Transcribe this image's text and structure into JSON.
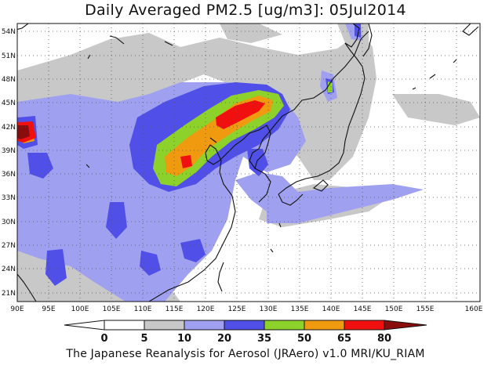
{
  "title": "Daily Averaged PM2.5 [ug/m3]: 05Jul2014",
  "footer": "The Japanese Reanalysis for Aerosol (JRAero) v1.0 MRI/KU_RIAM",
  "lat_labels": [
    "54N",
    "51N",
    "48N",
    "45N",
    "42N",
    "39N",
    "36N",
    "33N",
    "30N",
    "27N",
    "24N",
    "21N"
  ],
  "lon_labels": [
    "90E",
    "95E",
    "100E",
    "105E",
    "110E",
    "115E",
    "120E",
    "125E",
    "130E",
    "135E",
    "140E",
    "145E",
    "150E",
    "155E",
    "160E"
  ],
  "colorbar": {
    "labels": [
      "0",
      "5",
      "10",
      "20",
      "35",
      "50",
      "65",
      "80"
    ],
    "colors": [
      "#ffffff",
      "#c8c8c8",
      "#a0a0f0",
      "#5050e8",
      "#8cd22a",
      "#f09a10",
      "#f01010",
      "#8a0c0c"
    ]
  }
}
